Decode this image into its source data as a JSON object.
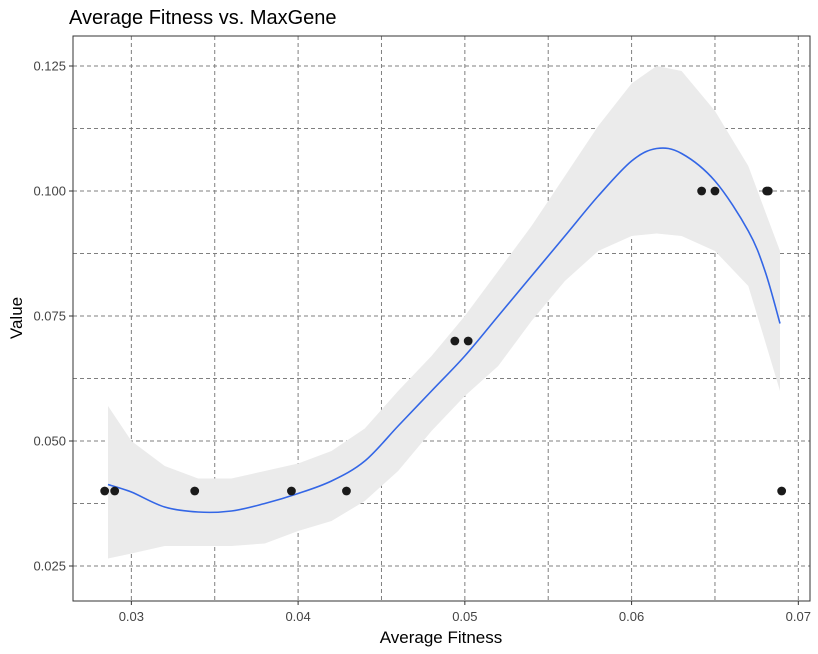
{
  "chart_data": {
    "type": "scatter",
    "title": "Average Fitness vs. MaxGene",
    "xlabel": "Average Fitness",
    "ylabel": "Value",
    "xlim": [
      0.0265,
      0.0707
    ],
    "ylim": [
      0.018,
      0.131
    ],
    "x_ticks": [
      0.03,
      0.04,
      0.05,
      0.06,
      0.07
    ],
    "x_tick_labels": [
      "0.03",
      "0.04",
      "0.05",
      "0.06",
      "0.07"
    ],
    "y_ticks": [
      0.025,
      0.05,
      0.075,
      0.1,
      0.125
    ],
    "y_tick_labels": [
      "0.025",
      "0.050",
      "0.075",
      "0.100",
      "0.125"
    ],
    "x_minor_ticks": [
      0.035,
      0.045,
      0.055,
      0.065
    ],
    "y_minor_ticks": [
      0.0375,
      0.0625,
      0.0875,
      0.1125
    ],
    "grid": true,
    "point_color": "#1a1a1a",
    "smooth_color": "#3366e6",
    "band_color": "#ebebeb",
    "points": [
      {
        "x": 0.0284,
        "y": 0.04
      },
      {
        "x": 0.029,
        "y": 0.04
      },
      {
        "x": 0.0338,
        "y": 0.04
      },
      {
        "x": 0.0396,
        "y": 0.04
      },
      {
        "x": 0.0429,
        "y": 0.04
      },
      {
        "x": 0.0494,
        "y": 0.07
      },
      {
        "x": 0.0502,
        "y": 0.07
      },
      {
        "x": 0.0642,
        "y": 0.1
      },
      {
        "x": 0.065,
        "y": 0.1
      },
      {
        "x": 0.0681,
        "y": 0.1
      },
      {
        "x": 0.0682,
        "y": 0.1
      },
      {
        "x": 0.069,
        "y": 0.04
      }
    ],
    "smooth": {
      "x": [
        0.0286,
        0.03,
        0.032,
        0.034,
        0.036,
        0.038,
        0.04,
        0.042,
        0.044,
        0.046,
        0.048,
        0.05,
        0.052,
        0.054,
        0.056,
        0.058,
        0.06,
        0.0615,
        0.063,
        0.065,
        0.067,
        0.068,
        0.0689
      ],
      "y": [
        0.0413,
        0.0398,
        0.0368,
        0.0358,
        0.036,
        0.0375,
        0.0395,
        0.042,
        0.046,
        0.053,
        0.06,
        0.067,
        0.075,
        0.083,
        0.091,
        0.099,
        0.106,
        0.1085,
        0.1075,
        0.102,
        0.092,
        0.084,
        0.0735
      ],
      "lower": [
        0.0265,
        0.0275,
        0.029,
        0.029,
        0.029,
        0.0295,
        0.032,
        0.034,
        0.038,
        0.044,
        0.052,
        0.059,
        0.065,
        0.074,
        0.082,
        0.088,
        0.091,
        0.0915,
        0.091,
        0.088,
        0.081,
        0.07,
        0.06
      ],
      "upper": [
        0.057,
        0.05,
        0.045,
        0.0425,
        0.0425,
        0.044,
        0.0455,
        0.048,
        0.0525,
        0.06,
        0.067,
        0.075,
        0.084,
        0.093,
        0.103,
        0.113,
        0.1215,
        0.125,
        0.124,
        0.116,
        0.105,
        0.096,
        0.088
      ]
    }
  }
}
